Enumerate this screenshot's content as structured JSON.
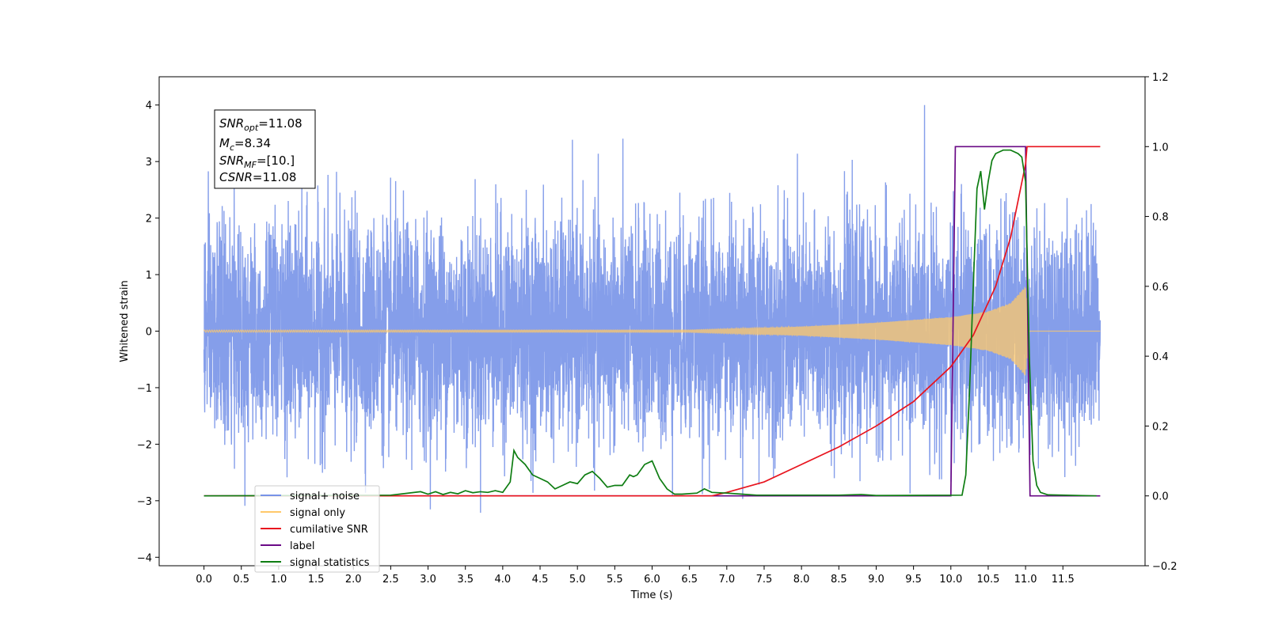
{
  "chart_data": {
    "type": "line",
    "title": "",
    "xlabel": "Time (s)",
    "ylabel": "Whitened strain",
    "xlim": [
      -0.6,
      12.6
    ],
    "ylim": [
      -4.15,
      4.5
    ],
    "y2lim": [
      -0.2,
      1.2
    ],
    "grid": false,
    "legend_position": "lower-left",
    "x_ticks": [
      "0.0",
      "0.5",
      "1.0",
      "1.5",
      "2.0",
      "2.5",
      "3.0",
      "3.5",
      "4.0",
      "4.5",
      "5.0",
      "5.5",
      "6.0",
      "6.5",
      "7.0",
      "7.5",
      "8.0",
      "8.5",
      "9.0",
      "9.5",
      "10.0",
      "10.5",
      "11.0",
      "11.5"
    ],
    "y_ticks": [
      "−4",
      "−3",
      "−2",
      "−1",
      "0",
      "1",
      "2",
      "3",
      "4"
    ],
    "y_tick_values": [
      -4,
      -3,
      -2,
      -1,
      0,
      1,
      2,
      3,
      4
    ],
    "y2_ticks": [
      "−0.2",
      "0.0",
      "0.2",
      "0.4",
      "0.6",
      "0.8",
      "1.0",
      "1.2"
    ],
    "y2_tick_values": [
      -0.2,
      0.0,
      0.2,
      0.4,
      0.6,
      0.8,
      1.0,
      1.2
    ],
    "annotation": {
      "lines": [
        {
          "sym": "SNR",
          "sub": "opt",
          "value": "=11.08"
        },
        {
          "sym": "M",
          "sub": "c",
          "value": "=8.34"
        },
        {
          "sym": "SNR",
          "sub": "MF",
          "value": "=[10.]"
        },
        {
          "sym": "CSNR",
          "sub": "",
          "value": "=11.08"
        }
      ]
    },
    "series": [
      {
        "name": "signal+ noise",
        "color": "#7893e8",
        "axis": "left",
        "description": "whitened noise, approx Gaussian sigma 0.95 over t 0.0–12.0, peak 4.1 near t 10.1"
      },
      {
        "name": "signal only",
        "color": "#ffc86a",
        "axis": "left",
        "envelope": {
          "x": [
            0.0,
            6.5,
            8.0,
            9.0,
            10.0,
            10.5,
            10.8,
            11.0,
            11.05,
            12.0
          ],
          "amp": [
            0.02,
            0.02,
            0.08,
            0.15,
            0.25,
            0.35,
            0.5,
            0.8,
            0.0,
            0.0
          ]
        }
      },
      {
        "name": "cumilative SNR",
        "color": "#e8141e",
        "axis": "right",
        "x": [
          0.0,
          6.8,
          7.0,
          7.5,
          8.0,
          8.5,
          9.0,
          9.5,
          10.0,
          10.3,
          10.6,
          10.8,
          11.0,
          11.02,
          12.0
        ],
        "y": [
          0.0,
          0.0,
          0.01,
          0.04,
          0.09,
          0.14,
          0.2,
          0.27,
          0.37,
          0.46,
          0.6,
          0.74,
          0.95,
          1.0,
          1.0
        ]
      },
      {
        "name": "label",
        "color": "#6a0a86",
        "axis": "right",
        "x": [
          0.0,
          10.0,
          10.06,
          11.0,
          11.06,
          12.0
        ],
        "y": [
          0.0,
          0.0,
          1.0,
          1.0,
          0.0,
          0.0
        ]
      },
      {
        "name": "signal statistics",
        "color": "#0e7d12",
        "axis": "right",
        "x": [
          0.0,
          2.5,
          2.9,
          3.0,
          3.1,
          3.2,
          3.3,
          3.4,
          3.5,
          3.6,
          3.7,
          3.8,
          3.9,
          4.0,
          4.1,
          4.15,
          4.2,
          4.3,
          4.4,
          4.5,
          4.6,
          4.7,
          4.8,
          4.9,
          5.0,
          5.1,
          5.2,
          5.3,
          5.4,
          5.5,
          5.6,
          5.7,
          5.75,
          5.8,
          5.9,
          6.0,
          6.1,
          6.2,
          6.3,
          6.4,
          6.6,
          6.7,
          6.8,
          7.0,
          7.2,
          7.4,
          8.5,
          8.8,
          9.0,
          10.15,
          10.2,
          10.25,
          10.3,
          10.35,
          10.4,
          10.45,
          10.5,
          10.55,
          10.6,
          10.7,
          10.8,
          10.9,
          10.95,
          11.0,
          11.05,
          11.1,
          11.15,
          11.2,
          11.3,
          11.95
        ],
        "y": [
          0.0,
          0.002,
          0.012,
          0.005,
          0.012,
          0.004,
          0.01,
          0.006,
          0.015,
          0.009,
          0.012,
          0.01,
          0.015,
          0.01,
          0.04,
          0.13,
          0.11,
          0.09,
          0.06,
          0.05,
          0.04,
          0.02,
          0.03,
          0.04,
          0.035,
          0.06,
          0.07,
          0.05,
          0.025,
          0.03,
          0.03,
          0.06,
          0.055,
          0.06,
          0.09,
          0.1,
          0.05,
          0.02,
          0.005,
          0.005,
          0.008,
          0.02,
          0.01,
          0.008,
          0.005,
          0.002,
          0.002,
          0.004,
          0.001,
          0.002,
          0.06,
          0.3,
          0.6,
          0.88,
          0.93,
          0.82,
          0.9,
          0.96,
          0.98,
          0.99,
          0.99,
          0.98,
          0.97,
          0.9,
          0.4,
          0.1,
          0.03,
          0.01,
          0.003,
          0.0
        ]
      }
    ]
  }
}
